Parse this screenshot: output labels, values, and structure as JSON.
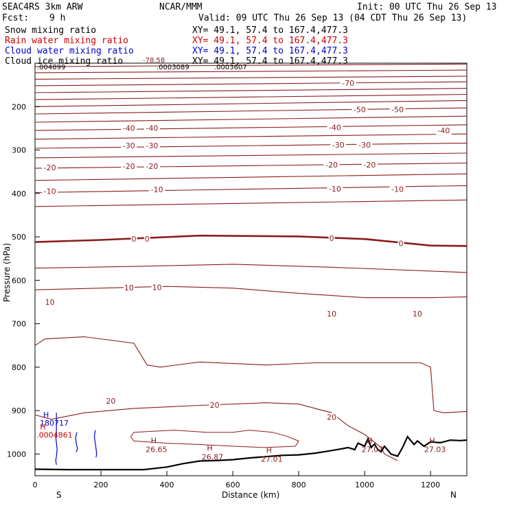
{
  "header": {
    "model": "SEAC4RS  3km ARW",
    "org": "NCAR/MMM",
    "init": "Init: 00 UTC Thu 26 Sep 13",
    "fcst_label": "Fcst:",
    "fcst_value": "9 h",
    "valid": "Valid: 09 UTC Thu 26 Sep 13 (04 CDT Thu 26 Sep 13)"
  },
  "fields": [
    {
      "name": "Snow mixing ratio",
      "xy": "XY=  49.1, 57.4 to 167.4,477.3",
      "color": "#000000"
    },
    {
      "name": "Rain water mixing ratio",
      "xy": "XY=  49.1, 57.4 to 167.4,477.3",
      "color": "#cc0000"
    },
    {
      "name": "Cloud water mixing ratio",
      "xy": "XY=  49.1, 57.4 to 167.4,477.3",
      "color": "#0000cc"
    },
    {
      "name": "Cloud ice mixing ratio",
      "xy": "XY=  49.1, 57.4 to 167.4,477.3",
      "color": "#000000"
    }
  ],
  "overlap_labels": [
    "-78.58",
    ".004899",
    ".0003089",
    ".0003607"
  ],
  "chart_data": {
    "type": "line",
    "title": "",
    "xlabel": "Distance (km)",
    "ylabel": "Pressure (hPa)",
    "xlim": [
      0,
      1310
    ],
    "ylim": [
      1050,
      100
    ],
    "x_ticks": [
      "0",
      "200",
      "400",
      "600",
      "800",
      "1000",
      "1200"
    ],
    "y_ticks": [
      "200",
      "300",
      "400",
      "500",
      "600",
      "700",
      "800",
      "900",
      "1000"
    ],
    "end_labels": {
      "left": "S",
      "right": "N"
    },
    "colors": {
      "temperature": "#8b1a1a",
      "terrain": "#000000",
      "cloud_water": "#0000cc"
    },
    "isotherms": [
      {
        "level": -80,
        "x": [
          0,
          1310
        ],
        "p": [
          108,
          102
        ]
      },
      {
        "level": -78,
        "x": [
          0,
          1310
        ],
        "p": [
          122,
          116
        ]
      },
      {
        "level": -75,
        "x": [
          0,
          1310
        ],
        "p": [
          137,
          130
        ]
      },
      {
        "level": -70,
        "x": [
          0,
          1310
        ],
        "p": [
          152,
          143
        ]
      },
      {
        "level": -65,
        "x": [
          0,
          1310
        ],
        "p": [
          168,
          158
        ]
      },
      {
        "level": -60,
        "x": [
          0,
          1310
        ],
        "p": [
          184,
          172
        ]
      },
      {
        "level": -55,
        "x": [
          0,
          1310
        ],
        "p": [
          200,
          186
        ]
      },
      {
        "level": -50,
        "x": [
          0,
          1310
        ],
        "p": [
          217,
          203
        ]
      },
      {
        "level": -45,
        "x": [
          0,
          1310
        ],
        "p": [
          236,
          222
        ]
      },
      {
        "level": -40,
        "x": [
          0,
          1310
        ],
        "p": [
          255,
          242
        ]
      },
      {
        "level": -35,
        "x": [
          0,
          1310
        ],
        "p": [
          275,
          263
        ]
      },
      {
        "level": -30,
        "x": [
          0,
          1310
        ],
        "p": [
          296,
          284
        ]
      },
      {
        "level": -25,
        "x": [
          0,
          1310
        ],
        "p": [
          318,
          307
        ]
      },
      {
        "level": -20,
        "x": [
          0,
          1310
        ],
        "p": [
          342,
          330
        ]
      },
      {
        "level": -15,
        "x": [
          0,
          1310
        ],
        "p": [
          370,
          355
        ]
      },
      {
        "level": -10,
        "x": [
          0,
          1310
        ],
        "p": [
          398,
          382
        ]
      },
      {
        "level": -5,
        "x": [
          0,
          1310
        ],
        "p": [
          430,
          415
        ]
      },
      {
        "level": 0,
        "x": [
          0,
          200,
          500,
          800,
          1000,
          1200,
          1310
        ],
        "p": [
          512,
          507,
          497,
          499,
          505,
          520,
          521
        ]
      },
      {
        "level": 5,
        "x": [
          0,
          300,
          600,
          900,
          1310
        ],
        "p": [
          572,
          568,
          563,
          570,
          582
        ]
      },
      {
        "level": 10,
        "x": [
          0,
          200,
          400,
          600,
          800,
          1000,
          1200,
          1310
        ],
        "p": [
          622,
          618,
          614,
          618,
          630,
          640,
          640,
          638
        ]
      },
      {
        "level": 15,
        "x": [
          0,
          30,
          150,
          300,
          340,
          380,
          500,
          700,
          850,
          1000,
          1170,
          1200,
          1210,
          1240,
          1310
        ],
        "p": [
          750,
          735,
          730,
          745,
          795,
          800,
          788,
          795,
          790,
          790,
          790,
          800,
          900,
          905,
          902
        ]
      },
      {
        "level": 20,
        "x": [
          0,
          50,
          150,
          300,
          500,
          700,
          800,
          900,
          950,
          1000,
          1050,
          1060,
          1100
        ],
        "p": [
          910,
          920,
          905,
          895,
          888,
          882,
          885,
          905,
          935,
          955,
          985,
          1000,
          1015
        ]
      }
    ],
    "isotherm_labels": [
      {
        "text": "-70",
        "x": 950,
        "p": 146
      },
      {
        "text": "-50",
        "x": 985,
        "p": 207
      },
      {
        "text": "-50",
        "x": 1100,
        "p": 207
      },
      {
        "text": "-40",
        "x": 285,
        "p": 249
      },
      {
        "text": "-40",
        "x": 355,
        "p": 249
      },
      {
        "text": "-40",
        "x": 910,
        "p": 248
      },
      {
        "text": "-40",
        "x": 1240,
        "p": 255
      },
      {
        "text": "-30",
        "x": 285,
        "p": 290
      },
      {
        "text": "-30",
        "x": 355,
        "p": 290
      },
      {
        "text": "-30",
        "x": 920,
        "p": 288
      },
      {
        "text": "-30",
        "x": 1000,
        "p": 288
      },
      {
        "text": "-20",
        "x": 45,
        "p": 340
      },
      {
        "text": "-20",
        "x": 285,
        "p": 337
      },
      {
        "text": "-20",
        "x": 355,
        "p": 337
      },
      {
        "text": "-20",
        "x": 900,
        "p": 334
      },
      {
        "text": "-20",
        "x": 1015,
        "p": 334
      },
      {
        "text": "-10",
        "x": 45,
        "p": 395
      },
      {
        "text": "-10",
        "x": 370,
        "p": 391
      },
      {
        "text": "-10",
        "x": 910,
        "p": 389
      },
      {
        "text": "-10",
        "x": 1100,
        "p": 390
      },
      {
        "text": "0",
        "x": 300,
        "p": 505
      },
      {
        "text": "0",
        "x": 340,
        "p": 505
      },
      {
        "text": "0",
        "x": 900,
        "p": 503
      },
      {
        "text": "0",
        "x": 1110,
        "p": 515
      },
      {
        "text": "10",
        "x": 45,
        "p": 650
      },
      {
        "text": "10",
        "x": 285,
        "p": 617
      },
      {
        "text": "10",
        "x": 370,
        "p": 616
      },
      {
        "text": "10",
        "x": 900,
        "p": 677
      },
      {
        "text": "10",
        "x": 1160,
        "p": 677
      },
      {
        "text": "20",
        "x": 230,
        "p": 878
      },
      {
        "text": "20",
        "x": 545,
        "p": 887
      },
      {
        "text": "20",
        "x": 900,
        "p": 915
      }
    ],
    "highs": [
      {
        "x": 360,
        "p": 975,
        "value": "26.65"
      },
      {
        "x": 530,
        "p": 992,
        "value": "26.87"
      },
      {
        "x": 710,
        "p": 997,
        "value": "27.01"
      },
      {
        "x": 1015,
        "p": 975,
        "value": "27.07"
      },
      {
        "x": 1205,
        "p": 975,
        "value": "27.03"
      }
    ],
    "cloud_highs": [
      {
        "x": 25,
        "p": 935,
        "value": "180717",
        "color": "#0000cc"
      },
      {
        "x": 15,
        "p": 962,
        "value": ".0004861",
        "color": "#cc0000"
      }
    ],
    "terrain": {
      "x": [
        0,
        100,
        200,
        300,
        330,
        400,
        450,
        500,
        550,
        600,
        650,
        700,
        750,
        800,
        850,
        900,
        930,
        950,
        970,
        980,
        1000,
        1010,
        1020,
        1030,
        1040,
        1050,
        1060,
        1080,
        1100,
        1115,
        1130,
        1150,
        1160,
        1180,
        1200,
        1230,
        1260,
        1290,
        1310
      ],
      "p": [
        1035,
        1036,
        1036,
        1036,
        1036,
        1030,
        1022,
        1016,
        1015,
        1013,
        1009,
        1006,
        1003,
        1002,
        998,
        992,
        988,
        985,
        990,
        975,
        982,
        965,
        985,
        977,
        990,
        995,
        982,
        1000,
        1005,
        985,
        960,
        978,
        970,
        982,
        972,
        974,
        968,
        969,
        968
      ]
    },
    "cloud_water": [
      {
        "x": [
          65,
          65,
          63,
          65,
          67,
          65,
          63,
          65
        ],
        "p": [
          905,
          945,
          960,
          975,
          990,
          1005,
          1015,
          1025
        ]
      },
      {
        "x": [
          127,
          123,
          125,
          129,
          125
        ],
        "p": [
          950,
          962,
          975,
          988,
          995
        ]
      },
      {
        "x": [
          183,
          180,
          184,
          187,
          185
        ],
        "p": [
          945,
          960,
          980,
          1000,
          1008
        ]
      }
    ],
    "rain_closed_contours": [
      {
        "x": [
          290,
          300,
          420,
          520,
          600,
          650,
          720,
          760,
          800,
          790,
          700,
          600,
          500,
          400,
          300,
          290
        ],
        "p": [
          960,
          950,
          945,
          950,
          950,
          945,
          950,
          958,
          970,
          982,
          985,
          982,
          978,
          975,
          970,
          960
        ]
      }
    ]
  }
}
